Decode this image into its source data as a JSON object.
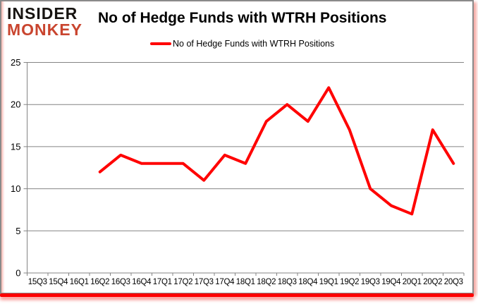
{
  "logo": {
    "line1": "INSIDER",
    "line2": "MONKEY"
  },
  "header": {
    "title": "No of Hedge Funds with WTRH Positions"
  },
  "legend": {
    "label": "No of Hedge Funds with WTRH Positions"
  },
  "chart_data": {
    "type": "line",
    "title": "No of Hedge Funds with WTRH Positions",
    "categories": [
      "15Q3",
      "15Q4",
      "16Q1",
      "16Q2",
      "16Q3",
      "16Q4",
      "17Q1",
      "17Q2",
      "17Q3",
      "17Q4",
      "18Q1",
      "18Q2",
      "18Q3",
      "18Q4",
      "19Q1",
      "19Q2",
      "19Q3",
      "19Q4",
      "20Q1",
      "20Q2",
      "20Q3"
    ],
    "series": [
      {
        "name": "No of Hedge Funds with WTRH Positions",
        "color": "#ff0000",
        "values": [
          null,
          null,
          null,
          12,
          14,
          13,
          13,
          13,
          11,
          14,
          13,
          18,
          20,
          18,
          22,
          17,
          10,
          8,
          7,
          17,
          13
        ]
      }
    ],
    "xlabel": "",
    "ylabel": "",
    "ylim": [
      0,
      25
    ],
    "yticks": [
      0,
      5,
      10,
      15,
      20,
      25
    ],
    "grid": "horizontal",
    "legend_position": "top"
  },
  "colors": {
    "series_red": "#ff0000",
    "logo_black": "#161310",
    "logo_red": "#c9452f",
    "grid_gray": "#848484",
    "frame_border": "#8a8a8a",
    "shadow_pink": "#f49e96",
    "text": "#000000"
  }
}
